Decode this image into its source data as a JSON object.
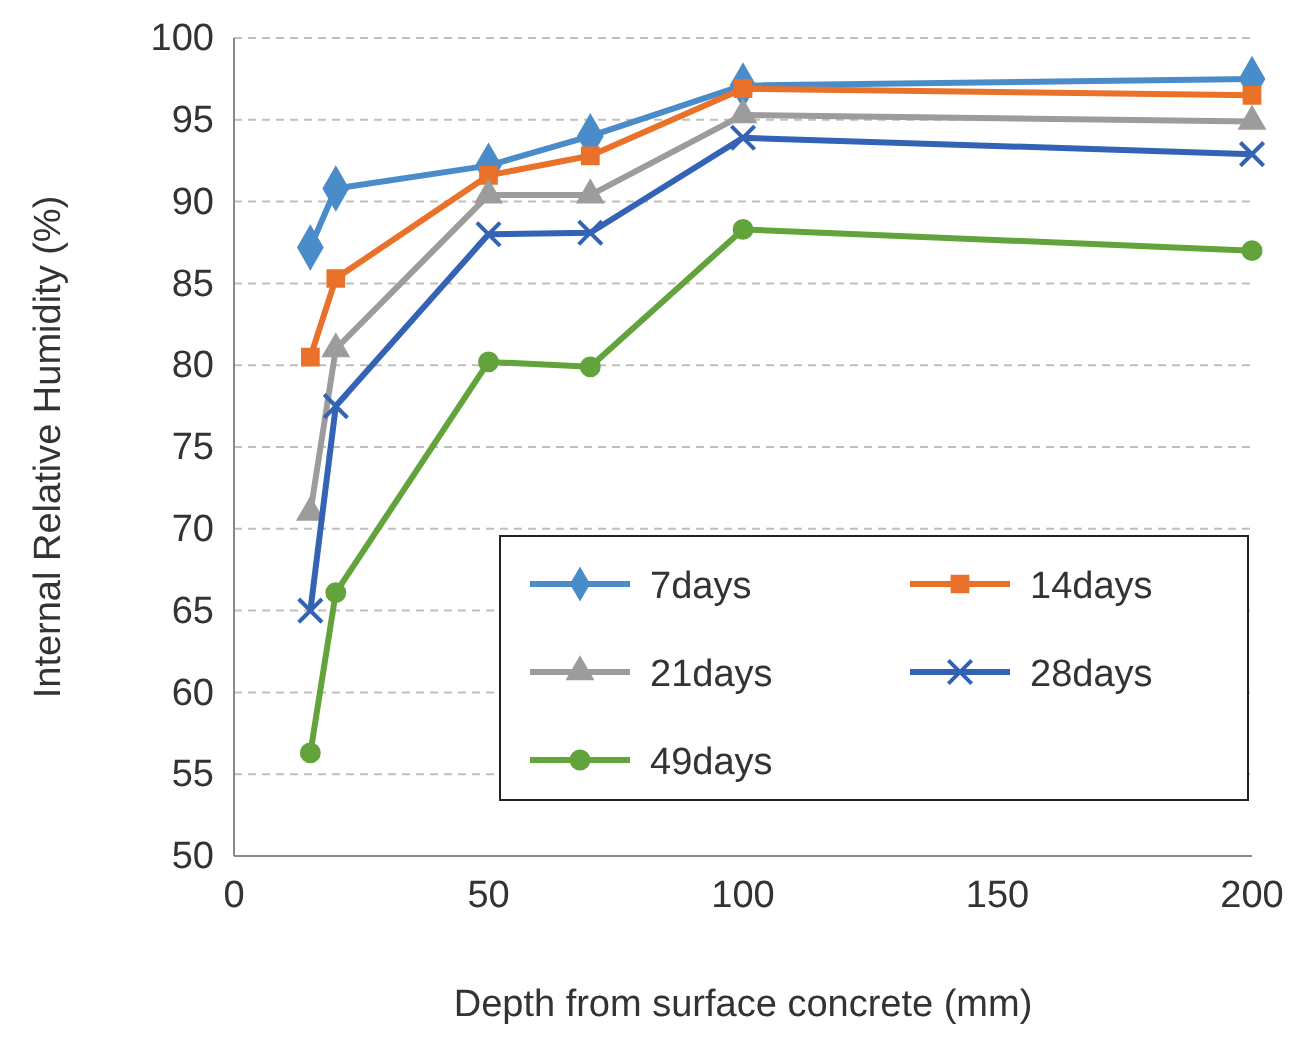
{
  "chart_data": {
    "type": "line",
    "xlabel": "Depth from surface concrete (mm)",
    "ylabel": "Internal Relative Humidity (%)",
    "x": [
      15,
      20,
      50,
      70,
      100,
      200
    ],
    "xlim": [
      0,
      200
    ],
    "xticks": [
      0,
      50,
      100,
      150,
      200
    ],
    "ylim": [
      50,
      100
    ],
    "yticks": [
      50,
      55,
      60,
      65,
      70,
      75,
      80,
      85,
      90,
      95,
      100
    ],
    "grid": "y",
    "legend": "bottom right",
    "line_style": "solid",
    "series": [
      {
        "name": "7days",
        "color": "#4a8cc9",
        "marker": "diamond",
        "values": [
          87.2,
          90.8,
          92.2,
          94,
          97.1,
          97.5
        ]
      },
      {
        "name": "14days",
        "color": "#e9712a",
        "marker": "square",
        "values": [
          80.5,
          85.3,
          91.6,
          92.8,
          96.9,
          96.5
        ]
      },
      {
        "name": "21days",
        "color": "#9c9c9c",
        "marker": "triangle",
        "values": [
          71,
          81,
          90.4,
          90.4,
          95.3,
          94.9
        ]
      },
      {
        "name": "28days",
        "color": "#3463b5",
        "marker": "cross",
        "values": [
          65,
          77.5,
          88,
          88.1,
          93.9,
          92.9
        ]
      },
      {
        "name": "49days",
        "color": "#62a33b",
        "marker": "circle",
        "values": [
          56.3,
          66.1,
          80.2,
          79.9,
          88.3,
          87
        ]
      }
    ]
  }
}
